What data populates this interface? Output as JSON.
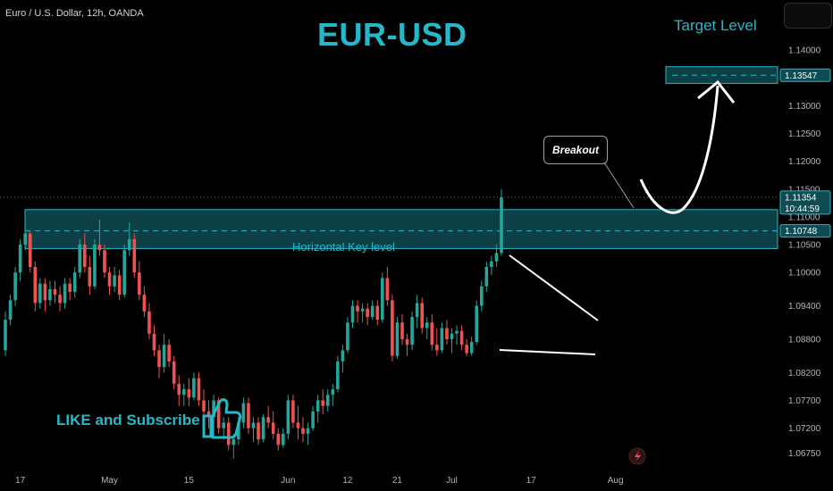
{
  "header": {
    "symbol": "Euro / U.S. Dollar, 12h, OANDA"
  },
  "annotations": {
    "title": "EUR-USD",
    "target_label": "Target Level",
    "breakout_label": "Breakout",
    "key_level_label": "Horizontal Key level",
    "like_text": "LIKE and Subscribe"
  },
  "colors": {
    "up": "#26a69a",
    "down": "#ef5350",
    "accent": "#26b7c9",
    "zone_fill": "#0e4b52"
  },
  "icons": {
    "like": "thumbs-up-icon",
    "flash": "lightning-icon"
  },
  "chart_data": {
    "type": "candlestick",
    "ylim": [
      1.0652,
      1.1445
    ],
    "y_ticks": [
      "1.14000",
      "1.13500",
      "1.13000",
      "1.12500",
      "1.12000",
      "1.11500",
      "1.11000",
      "1.10500",
      "1.10000",
      "1.09400",
      "1.08800",
      "1.08200",
      "1.07700",
      "1.07200",
      "1.06750"
    ],
    "x_ticks": [
      {
        "label": "17",
        "bar": 3
      },
      {
        "label": "May",
        "bar": 21
      },
      {
        "label": "15",
        "bar": 37
      },
      {
        "label": "Jun",
        "bar": 57
      },
      {
        "label": "12",
        "bar": 69
      },
      {
        "label": "21",
        "bar": 79
      },
      {
        "label": "Jul",
        "bar": 90
      },
      {
        "label": "17",
        "bar": 106
      },
      {
        "label": "Aug",
        "bar": 123
      }
    ],
    "price_tags": [
      {
        "label": "1.13547",
        "value": 1.13547
      },
      {
        "label": "1.11354",
        "value": 1.11354,
        "sub": "10:44:59"
      },
      {
        "label": "1.10748",
        "value": 1.10748
      }
    ],
    "key_zone": {
      "top": 1.1113,
      "bottom": 1.1043
    },
    "target_zone": {
      "top": 1.137,
      "bottom": 1.134
    },
    "candles_ohlc": [
      [
        1.086,
        1.093,
        1.085,
        1.0915
      ],
      [
        1.0915,
        1.096,
        1.0905,
        1.095
      ],
      [
        1.095,
        1.101,
        1.094,
        1.1
      ],
      [
        1.1,
        1.106,
        1.0985,
        1.105
      ],
      [
        1.105,
        1.1085,
        1.104,
        1.107
      ],
      [
        1.107,
        1.1075,
        1.1,
        1.101
      ],
      [
        1.101,
        1.102,
        1.093,
        1.0945
      ],
      [
        1.0945,
        1.099,
        1.0935,
        1.098
      ],
      [
        1.098,
        1.099,
        1.093,
        1.095
      ],
      [
        1.095,
        1.0985,
        1.094,
        1.097
      ],
      [
        1.097,
        1.0985,
        1.0945,
        1.096
      ],
      [
        1.096,
        1.0975,
        1.093,
        1.0945
      ],
      [
        1.0945,
        1.099,
        1.0935,
        1.098
      ],
      [
        1.098,
        1.099,
        1.095,
        1.0965
      ],
      [
        1.0965,
        1.101,
        1.0955,
        1.1
      ],
      [
        1.1,
        1.106,
        1.099,
        1.105
      ],
      [
        1.105,
        1.107,
        1.1,
        1.101
      ],
      [
        1.101,
        1.103,
        1.096,
        1.0975
      ],
      [
        1.0975,
        1.106,
        1.097,
        1.105
      ],
      [
        1.105,
        1.1095,
        1.103,
        1.104
      ],
      [
        1.104,
        1.105,
        1.099,
        1.1
      ],
      [
        1.1,
        1.101,
        1.096,
        1.0975
      ],
      [
        1.0975,
        1.101,
        1.0965,
        1.0995
      ],
      [
        1.0995,
        1.1005,
        1.095,
        1.096
      ],
      [
        1.096,
        1.105,
        1.0955,
        1.104
      ],
      [
        1.104,
        1.109,
        1.103,
        1.106
      ],
      [
        1.106,
        1.107,
        1.099,
        1.1
      ],
      [
        1.1,
        1.102,
        1.095,
        1.096
      ],
      [
        1.096,
        1.0975,
        1.092,
        1.093
      ],
      [
        1.093,
        1.0945,
        1.088,
        1.089
      ],
      [
        1.089,
        1.0905,
        1.085,
        1.086
      ],
      [
        1.086,
        1.087,
        1.081,
        1.083
      ],
      [
        1.083,
        1.089,
        1.082,
        1.087
      ],
      [
        1.087,
        1.088,
        1.083,
        1.084
      ],
      [
        1.084,
        1.085,
        1.079,
        1.08
      ],
      [
        1.08,
        1.0815,
        1.076,
        1.078
      ],
      [
        1.078,
        1.08,
        1.076,
        1.079
      ],
      [
        1.079,
        1.081,
        1.076,
        1.0775
      ],
      [
        1.0775,
        1.082,
        1.077,
        1.081
      ],
      [
        1.081,
        1.082,
        1.076,
        1.077
      ],
      [
        1.077,
        1.079,
        1.073,
        1.075
      ],
      [
        1.075,
        1.077,
        1.072,
        1.074
      ],
      [
        1.074,
        1.078,
        1.073,
        1.077
      ],
      [
        1.077,
        1.0775,
        1.071,
        1.072
      ],
      [
        1.072,
        1.074,
        1.07,
        1.073
      ],
      [
        1.073,
        1.074,
        1.068,
        1.069
      ],
      [
        1.069,
        1.071,
        1.0665,
        1.07
      ],
      [
        1.07,
        1.074,
        1.069,
        1.073
      ],
      [
        1.073,
        1.0775,
        1.072,
        1.0765
      ],
      [
        1.0765,
        1.0775,
        1.071,
        1.072
      ],
      [
        1.072,
        1.074,
        1.0695,
        1.073
      ],
      [
        1.073,
        1.074,
        1.069,
        1.07
      ],
      [
        1.07,
        1.0745,
        1.0695,
        1.074
      ],
      [
        1.074,
        1.076,
        1.072,
        1.073
      ],
      [
        1.073,
        1.075,
        1.07,
        1.071
      ],
      [
        1.071,
        1.072,
        1.068,
        1.069
      ],
      [
        1.069,
        1.072,
        1.0685,
        1.071
      ],
      [
        1.071,
        1.078,
        1.07,
        1.077
      ],
      [
        1.077,
        1.078,
        1.072,
        1.073
      ],
      [
        1.073,
        1.076,
        1.07,
        1.072
      ],
      [
        1.072,
        1.074,
        1.0695,
        1.071
      ],
      [
        1.071,
        1.073,
        1.069,
        1.072
      ],
      [
        1.072,
        1.076,
        1.0715,
        1.075
      ],
      [
        1.075,
        1.078,
        1.073,
        1.077
      ],
      [
        1.077,
        1.079,
        1.0745,
        1.076
      ],
      [
        1.076,
        1.079,
        1.075,
        1.078
      ],
      [
        1.078,
        1.08,
        1.076,
        1.079
      ],
      [
        1.079,
        1.085,
        1.0785,
        1.084
      ],
      [
        1.084,
        1.087,
        1.082,
        1.086
      ],
      [
        1.086,
        1.092,
        1.0855,
        1.091
      ],
      [
        1.091,
        1.095,
        1.09,
        1.094
      ],
      [
        1.094,
        1.095,
        1.091,
        1.093
      ],
      [
        1.093,
        1.0945,
        1.091,
        1.0935
      ],
      [
        1.0935,
        1.0945,
        1.0905,
        1.092
      ],
      [
        1.092,
        1.095,
        1.0915,
        1.094
      ],
      [
        1.094,
        1.095,
        1.0905,
        1.0915
      ],
      [
        1.0915,
        1.1,
        1.091,
        1.099
      ],
      [
        1.099,
        1.101,
        1.094,
        1.095
      ],
      [
        1.095,
        1.096,
        1.084,
        1.085
      ],
      [
        1.085,
        1.092,
        1.0845,
        1.091
      ],
      [
        1.091,
        1.0925,
        1.087,
        1.088
      ],
      [
        1.088,
        1.089,
        1.085,
        1.087
      ],
      [
        1.087,
        1.093,
        1.086,
        1.092
      ],
      [
        1.092,
        1.096,
        1.09,
        1.0945
      ],
      [
        1.0945,
        1.0955,
        1.089,
        1.09
      ],
      [
        1.09,
        1.092,
        1.088,
        1.091
      ],
      [
        1.091,
        1.0925,
        1.086,
        1.087
      ],
      [
        1.087,
        1.09,
        1.085,
        1.086
      ],
      [
        1.086,
        1.091,
        1.0855,
        1.09
      ],
      [
        1.09,
        1.0915,
        1.087,
        1.088
      ],
      [
        1.088,
        1.09,
        1.0855,
        1.089
      ],
      [
        1.089,
        1.0905,
        1.087,
        1.0895
      ],
      [
        1.0895,
        1.0905,
        1.086,
        1.087
      ],
      [
        1.087,
        1.088,
        1.085,
        1.0855
      ],
      [
        1.0855,
        1.0885,
        1.085,
        1.0875
      ],
      [
        1.0875,
        1.095,
        1.087,
        1.094
      ],
      [
        1.094,
        1.0985,
        1.093,
        1.0975
      ],
      [
        1.0975,
        1.102,
        1.0965,
        1.101
      ],
      [
        1.101,
        1.103,
        1.0995,
        1.102
      ],
      [
        1.102,
        1.105,
        1.101,
        1.1035
      ],
      [
        1.1035,
        1.115,
        1.103,
        1.1135
      ]
    ]
  }
}
